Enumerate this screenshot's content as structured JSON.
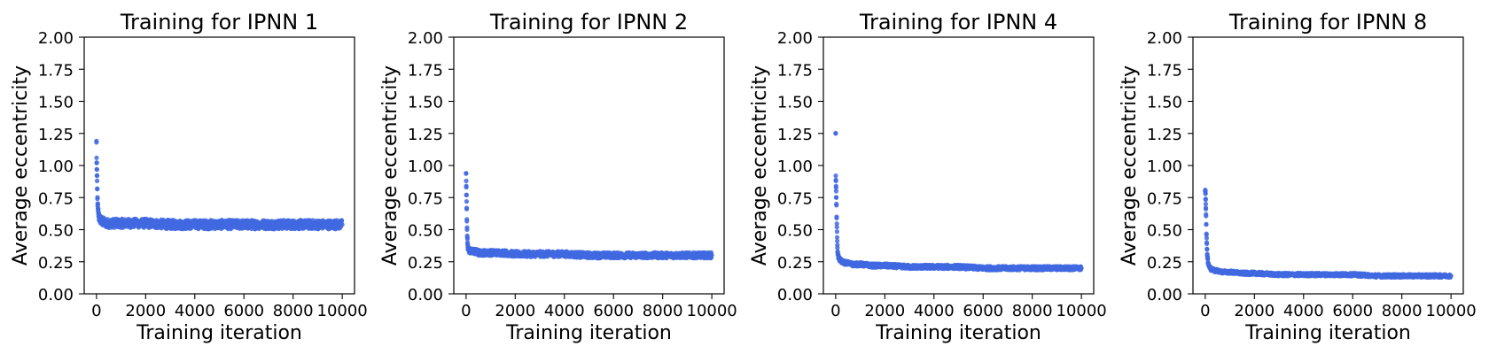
{
  "chart_data": [
    {
      "type": "scatter",
      "title": "Training for IPNN 1",
      "xlabel": "Training iteration",
      "ylabel": "Average eccentricity",
      "xlim": [
        -500,
        10500
      ],
      "ylim": [
        0,
        2
      ],
      "xticks": [
        0,
        2000,
        4000,
        6000,
        8000,
        10000
      ],
      "yticks": [
        "0.00",
        "0.25",
        "0.50",
        "0.75",
        "1.00",
        "1.25",
        "1.50",
        "1.75",
        "2.00"
      ],
      "grid": false,
      "color": "#4169e1",
      "series": [
        {
          "x": [
            0,
            5,
            10,
            15,
            20,
            25,
            30,
            40,
            50,
            60,
            70,
            80,
            100,
            120,
            150,
            200,
            250,
            300,
            400,
            500,
            700,
            1000,
            1500,
            2000,
            3000,
            4000,
            5000,
            6000,
            7000,
            8000,
            9000,
            10000
          ],
          "y": [
            1.18,
            1.06,
            1.02,
            0.97,
            0.92,
            0.88,
            0.82,
            0.74,
            0.7,
            0.66,
            0.64,
            0.62,
            0.6,
            0.59,
            0.58,
            0.57,
            0.56,
            0.56,
            0.55,
            0.55,
            0.55,
            0.55,
            0.55,
            0.55,
            0.54,
            0.54,
            0.54,
            0.54,
            0.54,
            0.54,
            0.54,
            0.54
          ],
          "spread": 0.035
        }
      ]
    },
    {
      "type": "scatter",
      "title": "Training for IPNN 2",
      "xlabel": "Training iteration",
      "ylabel": "Average eccentricity",
      "xlim": [
        -500,
        10500
      ],
      "ylim": [
        0,
        2
      ],
      "xticks": [
        0,
        2000,
        4000,
        6000,
        8000,
        10000
      ],
      "yticks": [
        "0.00",
        "0.25",
        "0.50",
        "0.75",
        "1.00",
        "1.25",
        "1.50",
        "1.75",
        "2.00"
      ],
      "grid": false,
      "color": "#4169e1",
      "series": [
        {
          "x": [
            0,
            5,
            10,
            15,
            20,
            25,
            30,
            40,
            50,
            60,
            70,
            80,
            100,
            120,
            150,
            200,
            250,
            300,
            400,
            500,
            700,
            1000,
            1500,
            2000,
            3000,
            4000,
            5000,
            6000,
            7000,
            8000,
            9000,
            10000
          ],
          "y": [
            0.94,
            0.88,
            0.83,
            0.77,
            0.72,
            0.66,
            0.58,
            0.5,
            0.44,
            0.4,
            0.38,
            0.36,
            0.35,
            0.34,
            0.34,
            0.33,
            0.33,
            0.33,
            0.33,
            0.32,
            0.32,
            0.32,
            0.32,
            0.31,
            0.31,
            0.31,
            0.3,
            0.3,
            0.3,
            0.3,
            0.3,
            0.3
          ],
          "spread": 0.022
        }
      ]
    },
    {
      "type": "scatter",
      "title": "Training for IPNN 4",
      "xlabel": "Training iteration",
      "ylabel": "Average eccentricity",
      "xlim": [
        -500,
        10500
      ],
      "ylim": [
        0,
        2
      ],
      "xticks": [
        0,
        2000,
        4000,
        6000,
        8000,
        10000
      ],
      "yticks": [
        "0.00",
        "0.25",
        "0.50",
        "0.75",
        "1.00",
        "1.25",
        "1.50",
        "1.75",
        "2.00"
      ],
      "grid": false,
      "color": "#4169e1",
      "series": [
        {
          "x": [
            0,
            5,
            10,
            15,
            20,
            25,
            30,
            40,
            50,
            60,
            70,
            80,
            100,
            120,
            150,
            200,
            250,
            300,
            400,
            500,
            700,
            1000,
            1500,
            2000,
            3000,
            4000,
            5000,
            6000,
            7000,
            8000,
            9000,
            10000
          ],
          "y": [
            1.25,
            0.92,
            0.88,
            0.84,
            0.8,
            0.75,
            0.7,
            0.6,
            0.52,
            0.44,
            0.38,
            0.33,
            0.3,
            0.28,
            0.27,
            0.26,
            0.25,
            0.25,
            0.24,
            0.24,
            0.23,
            0.23,
            0.22,
            0.22,
            0.21,
            0.21,
            0.21,
            0.2,
            0.2,
            0.2,
            0.2,
            0.2
          ],
          "spread": 0.015
        }
      ]
    },
    {
      "type": "scatter",
      "title": "Training for IPNN 8",
      "xlabel": "Training iteration",
      "ylabel": "Average eccentricity",
      "xlim": [
        -500,
        10500
      ],
      "ylim": [
        0,
        2
      ],
      "xticks": [
        0,
        2000,
        4000,
        6000,
        8000,
        10000
      ],
      "yticks": [
        "0.00",
        "0.25",
        "0.50",
        "0.75",
        "1.00",
        "1.25",
        "1.50",
        "1.75",
        "2.00"
      ],
      "grid": false,
      "color": "#4169e1",
      "series": [
        {
          "x": [
            0,
            5,
            10,
            15,
            20,
            25,
            30,
            40,
            50,
            60,
            70,
            80,
            100,
            120,
            150,
            200,
            250,
            300,
            400,
            500,
            700,
            1000,
            1500,
            2000,
            3000,
            4000,
            5000,
            6000,
            7000,
            8000,
            9000,
            10000
          ],
          "y": [
            0.81,
            0.8,
            0.78,
            0.74,
            0.7,
            0.66,
            0.62,
            0.54,
            0.46,
            0.4,
            0.35,
            0.31,
            0.27,
            0.24,
            0.22,
            0.2,
            0.19,
            0.19,
            0.18,
            0.18,
            0.17,
            0.17,
            0.16,
            0.16,
            0.15,
            0.15,
            0.15,
            0.15,
            0.14,
            0.14,
            0.14,
            0.14
          ],
          "spread": 0.012
        }
      ]
    }
  ]
}
